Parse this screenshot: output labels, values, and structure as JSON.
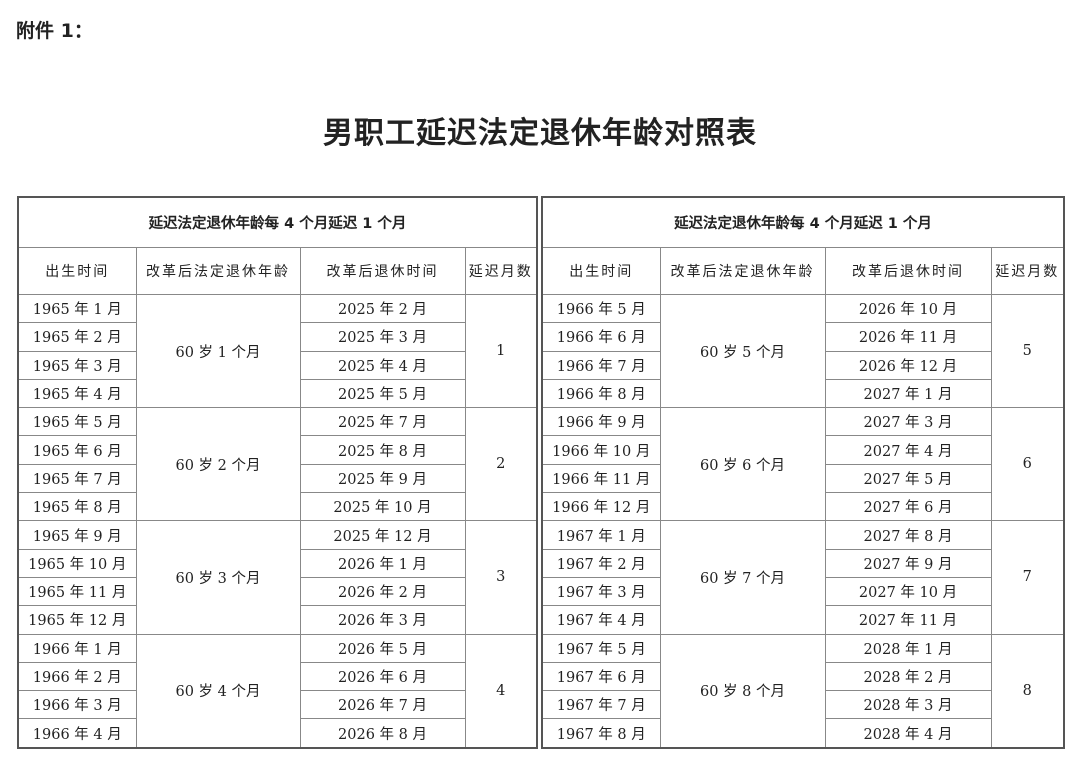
{
  "attachment_label": "附件 1：",
  "title": "男职工延迟法定退休年龄对照表",
  "tables": [
    {
      "caption": "延迟法定退休年龄每 4 个月延迟 1 个月",
      "headers": [
        "出生时间",
        "改革后法定退休年龄",
        "改革后退休时间",
        "延迟月数"
      ],
      "groups": [
        {
          "age": "60 岁 1 个月",
          "delay": "1",
          "rows": [
            [
              "1965 年 1 月",
              "2025 年 2 月"
            ],
            [
              "1965 年 2 月",
              "2025 年 3 月"
            ],
            [
              "1965 年 3 月",
              "2025 年 4 月"
            ],
            [
              "1965 年 4 月",
              "2025 年 5 月"
            ]
          ]
        },
        {
          "age": "60 岁 2 个月",
          "delay": "2",
          "rows": [
            [
              "1965 年 5 月",
              "2025 年 7 月"
            ],
            [
              "1965 年 6 月",
              "2025 年 8 月"
            ],
            [
              "1965 年 7 月",
              "2025 年 9 月"
            ],
            [
              "1965 年 8 月",
              "2025 年 10 月"
            ]
          ]
        },
        {
          "age": "60 岁 3 个月",
          "delay": "3",
          "rows": [
            [
              "1965 年 9 月",
              "2025 年 12 月"
            ],
            [
              "1965 年 10 月",
              "2026 年 1 月"
            ],
            [
              "1965 年 11 月",
              "2026 年 2 月"
            ],
            [
              "1965 年 12 月",
              "2026 年 3 月"
            ]
          ]
        },
        {
          "age": "60 岁 4 个月",
          "delay": "4",
          "rows": [
            [
              "1966 年 1 月",
              "2026 年 5 月"
            ],
            [
              "1966 年 2 月",
              "2026 年 6 月"
            ],
            [
              "1966 年 3 月",
              "2026 年 7 月"
            ],
            [
              "1966 年 4 月",
              "2026 年 8 月"
            ]
          ]
        }
      ]
    },
    {
      "caption": "延迟法定退休年龄每 4 个月延迟 1 个月",
      "headers": [
        "出生时间",
        "改革后法定退休年龄",
        "改革后退休时间",
        "延迟月数"
      ],
      "groups": [
        {
          "age": "60 岁 5 个月",
          "delay": "5",
          "rows": [
            [
              "1966 年 5 月",
              "2026 年 10 月"
            ],
            [
              "1966 年 6 月",
              "2026 年 11 月"
            ],
            [
              "1966 年 7 月",
              "2026 年 12 月"
            ],
            [
              "1966 年 8 月",
              "2027 年 1 月"
            ]
          ]
        },
        {
          "age": "60 岁 6 个月",
          "delay": "6",
          "rows": [
            [
              "1966 年 9 月",
              "2027 年 3 月"
            ],
            [
              "1966 年 10 月",
              "2027 年 4 月"
            ],
            [
              "1966 年 11 月",
              "2027 年 5 月"
            ],
            [
              "1966 年 12 月",
              "2027 年 6 月"
            ]
          ]
        },
        {
          "age": "60 岁 7 个月",
          "delay": "7",
          "rows": [
            [
              "1967 年 1 月",
              "2027 年 8 月"
            ],
            [
              "1967 年 2 月",
              "2027 年 9 月"
            ],
            [
              "1967 年 3 月",
              "2027 年 10 月"
            ],
            [
              "1967 年 4 月",
              "2027 年 11 月"
            ]
          ]
        },
        {
          "age": "60 岁 8 个月",
          "delay": "8",
          "rows": [
            [
              "1967 年 5 月",
              "2028 年 1 月"
            ],
            [
              "1967 年 6 月",
              "2028 年 2 月"
            ],
            [
              "1967 年 7 月",
              "2028 年 3 月"
            ],
            [
              "1967 年 8 月",
              "2028 年 4 月"
            ]
          ]
        }
      ]
    }
  ]
}
